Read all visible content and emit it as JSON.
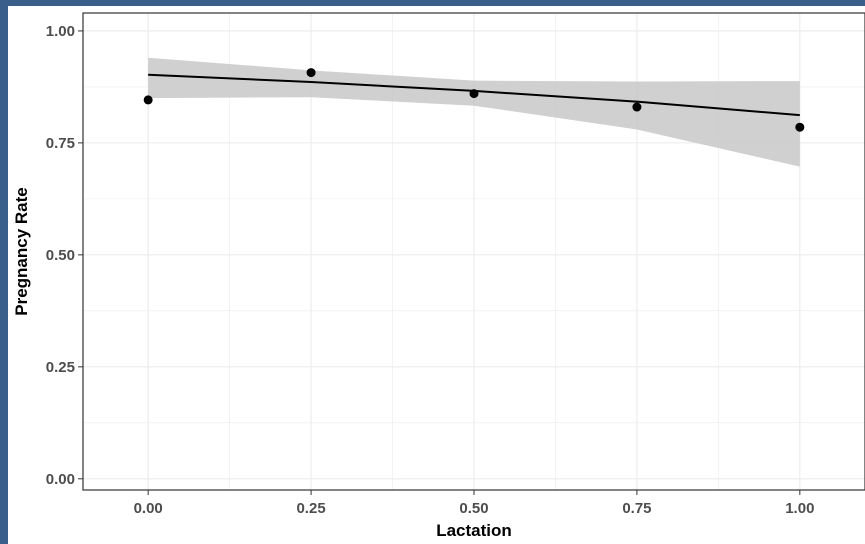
{
  "chart_data": {
    "type": "scatter",
    "xlabel": "Lactation",
    "ylabel": "Pregnancy Rate",
    "xlim": [
      -0.1,
      1.1
    ],
    "ylim": [
      -0.025,
      1.04
    ],
    "x_ticks": [
      0.0,
      0.25,
      0.5,
      0.75,
      1.0
    ],
    "x_tick_labels": [
      "0.00",
      "0.25",
      "0.50",
      "0.75",
      "1.00"
    ],
    "y_ticks": [
      0.0,
      0.25,
      0.5,
      0.75,
      1.0
    ],
    "y_tick_labels": [
      "0.00",
      "0.25",
      "0.50",
      "0.75",
      "1.00"
    ],
    "grid": true,
    "points": [
      {
        "x": 0.0,
        "y": 0.846
      },
      {
        "x": 0.25,
        "y": 0.907
      },
      {
        "x": 0.5,
        "y": 0.86
      },
      {
        "x": 0.75,
        "y": 0.83
      },
      {
        "x": 1.0,
        "y": 0.785
      }
    ],
    "fit_line": {
      "x": [
        0.0,
        0.25,
        0.5,
        0.75,
        1.0
      ],
      "y": [
        0.902,
        0.886,
        0.866,
        0.842,
        0.812
      ]
    },
    "confidence_band": {
      "x": [
        0.0,
        0.25,
        0.5,
        0.75,
        1.0
      ],
      "lower": [
        0.85,
        0.852,
        0.833,
        0.78,
        0.697
      ],
      "upper": [
        0.94,
        0.912,
        0.889,
        0.887,
        0.888
      ]
    },
    "colors": {
      "points": "#000000",
      "line": "#000000",
      "band": "#c8c8c8",
      "grid": "#ebebeb",
      "panel_border": "#333333"
    }
  }
}
